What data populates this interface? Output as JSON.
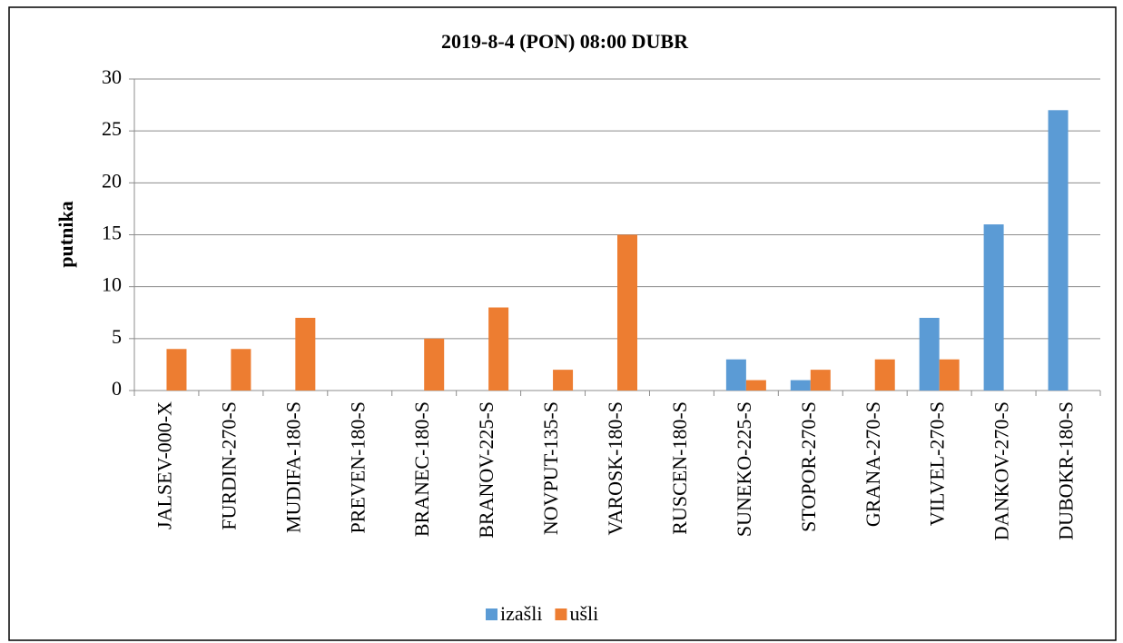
{
  "chart_data": {
    "type": "bar",
    "title": "2019-8-4 (PON) 08:00 DUBR",
    "y_label": "putnika",
    "categories": [
      "JALSEV-000-X",
      "FURDIN-270-S",
      "MUDIFA-180-S",
      "PREVEN-180-S",
      "BRANEC-180-S",
      "BRANOV-225-S",
      "NOVPUT-135-S",
      "VAROSK-180-S",
      "RUSCEN-180-S",
      "SUNEKO-225-S",
      "STOPOR-270-S",
      "GRANA-270-S",
      "VILVEL-270-S",
      "DANKOV-270-S",
      "DUBOKR-180-S"
    ],
    "series": [
      {
        "name": "izašli",
        "color": "#5b9bd5",
        "values": [
          0,
          0,
          0,
          0,
          0,
          0,
          0,
          0,
          0,
          3,
          1,
          0,
          7,
          16,
          27
        ]
      },
      {
        "name": "ušli",
        "color": "#ed7d31",
        "values": [
          4,
          4,
          7,
          0,
          5,
          8,
          2,
          15,
          0,
          1,
          2,
          3,
          3,
          0,
          0
        ]
      }
    ],
    "ylim": [
      0,
      30
    ],
    "yticks": [
      0,
      5,
      10,
      15,
      20,
      25,
      30
    ],
    "grid": true,
    "legend": "bottom"
  }
}
